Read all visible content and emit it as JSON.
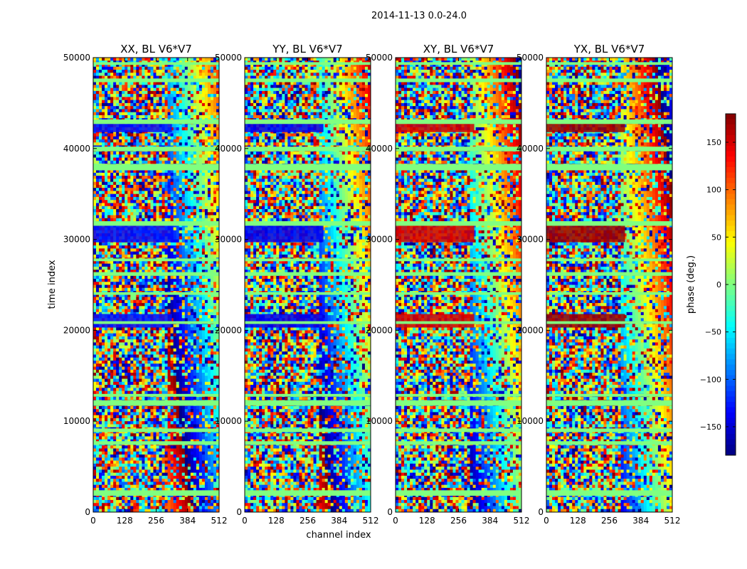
{
  "chart_data": {
    "type": "heatmap",
    "suptitle": "2014-11-13 0.0-24.0",
    "xlabel": "channel index",
    "ylabel": "time index",
    "xlim": [
      0,
      512
    ],
    "ylim": [
      0,
      50000
    ],
    "xticks": [
      0,
      128,
      256,
      384,
      512
    ],
    "yticks": [
      0,
      10000,
      20000,
      30000,
      40000,
      50000
    ],
    "xtick_labels": [
      "0",
      "128",
      "256",
      "384",
      "512"
    ],
    "ytick_labels": [
      "0",
      "10000",
      "20000",
      "30000",
      "40000",
      "50000"
    ],
    "panels": [
      {
        "title": "XX, BL V6*V7",
        "pol": "XX",
        "bias": -130
      },
      {
        "title": "YY, BL V6*V7",
        "pol": "YY",
        "bias": -140
      },
      {
        "title": "XY, BL V6*V7",
        "pol": "XY",
        "bias": 150
      },
      {
        "title": "YX, BL V6*V7",
        "pol": "YX",
        "bias": 170
      }
    ],
    "colorbar": {
      "label": "phase (deg.)",
      "range": [
        -180,
        180
      ],
      "ticks": [
        150,
        100,
        50,
        0,
        -50,
        -100,
        -150
      ],
      "tick_labels": [
        "150",
        "100",
        "50",
        "0",
        "−50",
        "−100",
        "−150"
      ],
      "colormap": "jet"
    },
    "flagged_time_bands": [
      [
        1800,
        2400
      ],
      [
        7400,
        7800
      ],
      [
        8800,
        9200
      ],
      [
        11700,
        12300
      ],
      [
        12700,
        13000
      ],
      [
        20700,
        21000
      ],
      [
        23900,
        24200
      ],
      [
        26000,
        26400
      ],
      [
        27600,
        27900
      ],
      [
        31500,
        32000
      ],
      [
        37600,
        38300
      ],
      [
        39700,
        40200
      ],
      [
        42700,
        43200
      ],
      [
        47300,
        47700
      ],
      [
        49200,
        49500
      ]
    ],
    "uniform_phase_blocks": [
      {
        "t": [
          20300,
          21800
        ],
        "channels": [
          0,
          320
        ]
      },
      {
        "t": [
          29700,
          31800
        ],
        "channels": [
          0,
          320
        ]
      },
      {
        "t": [
          41800,
          43000
        ],
        "channels": [
          0,
          320
        ]
      }
    ]
  }
}
